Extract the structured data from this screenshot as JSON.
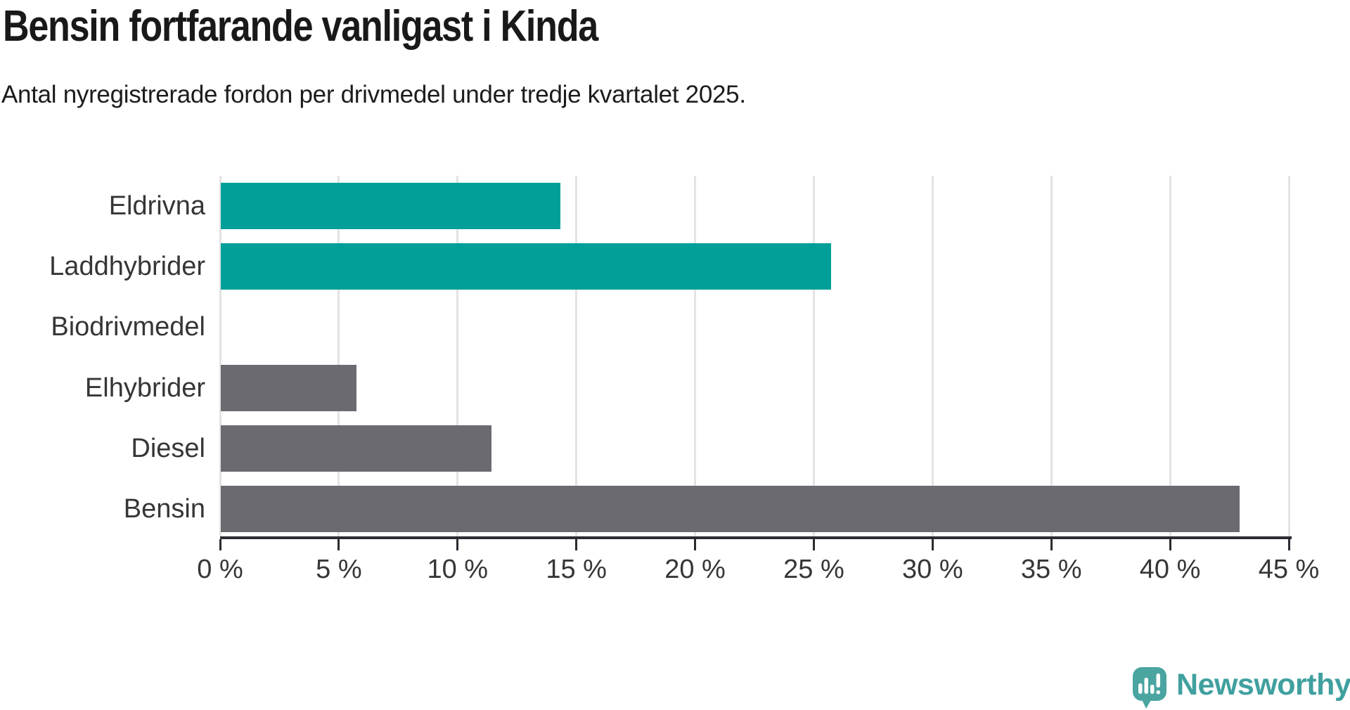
{
  "title": "Bensin fortfarande vanligast i Kinda",
  "subtitle": "Antal nyregistrerade fordon per drivmedel under tredje kvartalet 2025.",
  "chart_data": {
    "type": "bar",
    "orientation": "horizontal",
    "title": "Bensin fortfarande vanligast i Kinda",
    "subtitle": "Antal nyregistrerade fordon per drivmedel under tredje kvartalet 2025.",
    "categories": [
      "Eldrivna",
      "Laddhybrider",
      "Biodrivmedel",
      "Elhybrider",
      "Diesel",
      "Bensin"
    ],
    "values": [
      14.3,
      25.7,
      0,
      5.7,
      11.4,
      42.9
    ],
    "unit": "%",
    "xlim": [
      0,
      45
    ],
    "x_ticks": [
      "0 %",
      "5 %",
      "10 %",
      "15 %",
      "20 %",
      "25 %",
      "30 %",
      "35 %",
      "40 %",
      "45 %"
    ],
    "x_tick_values": [
      0,
      5,
      10,
      15,
      20,
      25,
      30,
      35,
      40,
      45
    ],
    "grid": "vertical",
    "legend": "none",
    "bar_colors": [
      "#00a099",
      "#00a099",
      "#00a099",
      "#6c6a71",
      "#6c6a71",
      "#6c6a71"
    ]
  },
  "colors": {
    "accent_teal": "#00a099",
    "neutral_gray": "#6c6a71",
    "axis": "#2d2b31",
    "gridline": "#e3e3e3",
    "text": "#363636",
    "logo_icon": "#4aa5a1",
    "logo_text": "#40a09f"
  },
  "branding": {
    "logo_text": "Newsworthy"
  }
}
